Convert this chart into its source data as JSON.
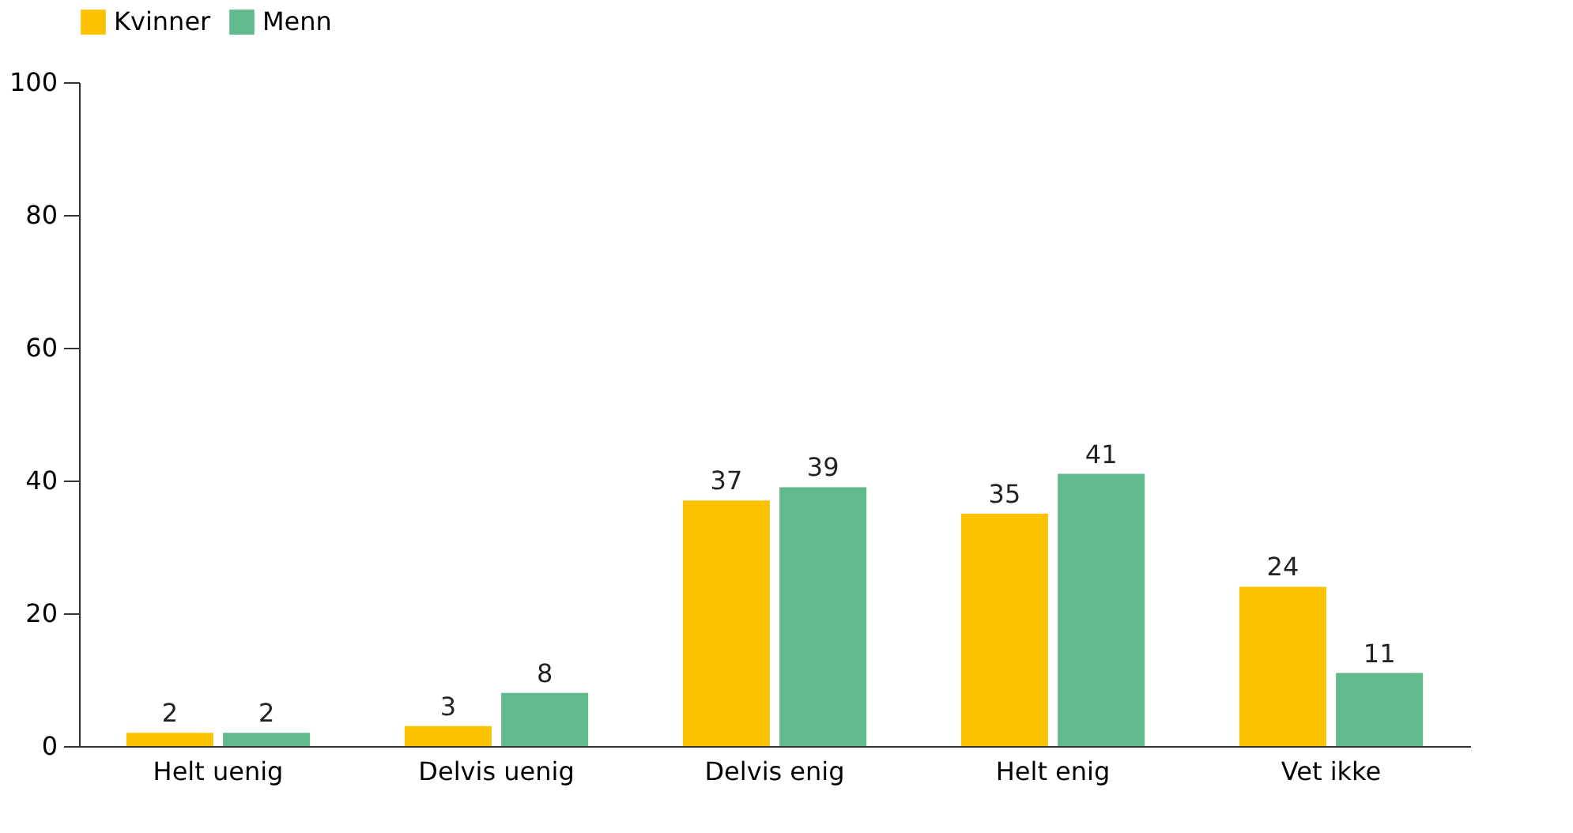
{
  "chart_data": {
    "type": "bar",
    "categories": [
      "Helt uenig",
      "Delvis uenig",
      "Delvis enig",
      "Helt enig",
      "Vet ikke"
    ],
    "series": [
      {
        "name": "Kvinner",
        "color": "#fcc200",
        "values": [
          2,
          3,
          37,
          35,
          24
        ]
      },
      {
        "name": "Menn",
        "color": "#62b98b",
        "values": [
          2,
          8,
          39,
          41,
          11
        ]
      }
    ],
    "ylim": [
      0,
      100
    ],
    "yticks": [
      0,
      20,
      40,
      60,
      80,
      100
    ],
    "data_labels": true,
    "grid": false,
    "legend": "top left"
  }
}
